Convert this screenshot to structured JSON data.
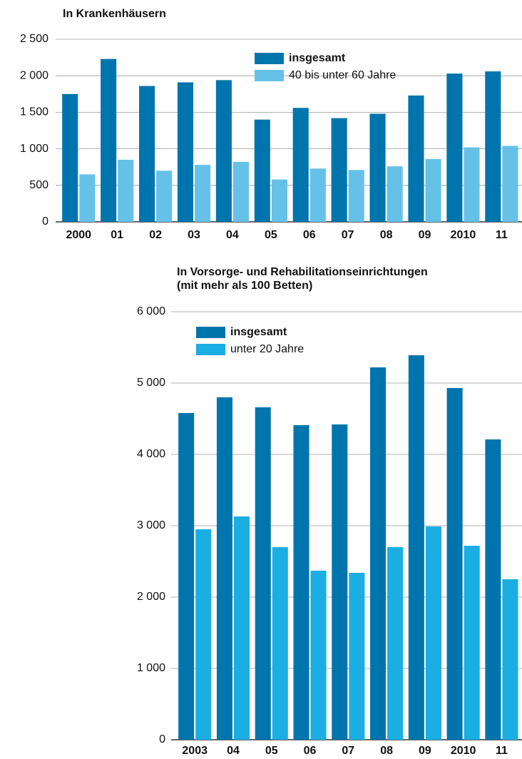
{
  "chart_data": [
    {
      "type": "bar",
      "title": "In Krankenhäusern",
      "categories": [
        "2000",
        "01",
        "02",
        "03",
        "04",
        "05",
        "06",
        "07",
        "08",
        "09",
        "2010",
        "11"
      ],
      "series": [
        {
          "name": "insgesamt",
          "color": "#0075ad",
          "values": [
            1750,
            2230,
            1860,
            1910,
            1940,
            1400,
            1560,
            1420,
            1480,
            1730,
            2030,
            2060
          ]
        },
        {
          "name": "40 bis unter 60 Jahre",
          "color": "#66c1e8",
          "values": [
            650,
            850,
            700,
            780,
            820,
            580,
            730,
            710,
            760,
            860,
            1020,
            1040
          ]
        }
      ],
      "ylim": [
        0,
        2500
      ],
      "yticks": [
        0,
        500,
        {
          "value": 1000,
          "label": "1 000"
        },
        {
          "value": 1500,
          "label": "1 500"
        },
        {
          "value": 2000,
          "label": "2 000"
        },
        {
          "value": 2500,
          "label": "2 500"
        }
      ],
      "grid": true
    },
    {
      "type": "bar",
      "title": "In Vorsorge- und Rehabilitationseinrichtungen",
      "subtitle": "(mit mehr als 100 Betten)",
      "categories": [
        "2003",
        "04",
        "05",
        "06",
        "07",
        "08",
        "09",
        "2010",
        "11"
      ],
      "series": [
        {
          "name": "insgesamt",
          "color": "#0075ad",
          "values": [
            4580,
            4800,
            4660,
            4410,
            4420,
            5220,
            5390,
            4930,
            4210
          ]
        },
        {
          "name": "unter 20 Jahre",
          "color": "#1aaee3",
          "values": [
            2950,
            3130,
            2700,
            2370,
            2340,
            2700,
            2990,
            2720,
            2250
          ]
        }
      ],
      "ylim": [
        0,
        6000
      ],
      "yticks": [
        0,
        {
          "value": 1000,
          "label": "1 000"
        },
        {
          "value": 2000,
          "label": "2 000"
        },
        {
          "value": 3000,
          "label": "3 000"
        },
        {
          "value": 4000,
          "label": "4 000"
        },
        {
          "value": 5000,
          "label": "5 000"
        },
        {
          "value": 6000,
          "label": "6 000"
        }
      ],
      "grid": true
    }
  ]
}
